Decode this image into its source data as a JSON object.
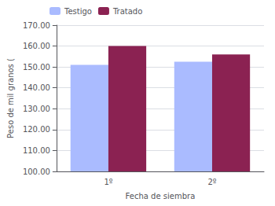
{
  "chart_data": {
    "type": "bar",
    "categories": [
      "1º",
      "2º"
    ],
    "series": [
      {
        "name": "Testigo",
        "color": "#aabbff",
        "values": [
          151.0,
          152.5
        ]
      },
      {
        "name": "Tratado",
        "color": "#8b2252",
        "values": [
          160.0,
          156.0
        ]
      }
    ],
    "xlabel": "Fecha de siembra",
    "ylabel": "Peso de mil granos (",
    "ylim": [
      100.0,
      170.0
    ],
    "yticks": [
      {
        "value": 100.0,
        "label": "100.00"
      },
      {
        "value": 110.0,
        "label": "110.00"
      },
      {
        "value": 120.0,
        "label": "120.00"
      },
      {
        "value": 130.0,
        "label": "130.00"
      },
      {
        "value": 140.0,
        "label": "140.00"
      },
      {
        "value": 150.0,
        "label": "150.00"
      },
      {
        "value": 160.0,
        "label": "160.00"
      },
      {
        "value": 170.0,
        "label": "170.00"
      }
    ],
    "grid": true,
    "legend": "upper left"
  }
}
